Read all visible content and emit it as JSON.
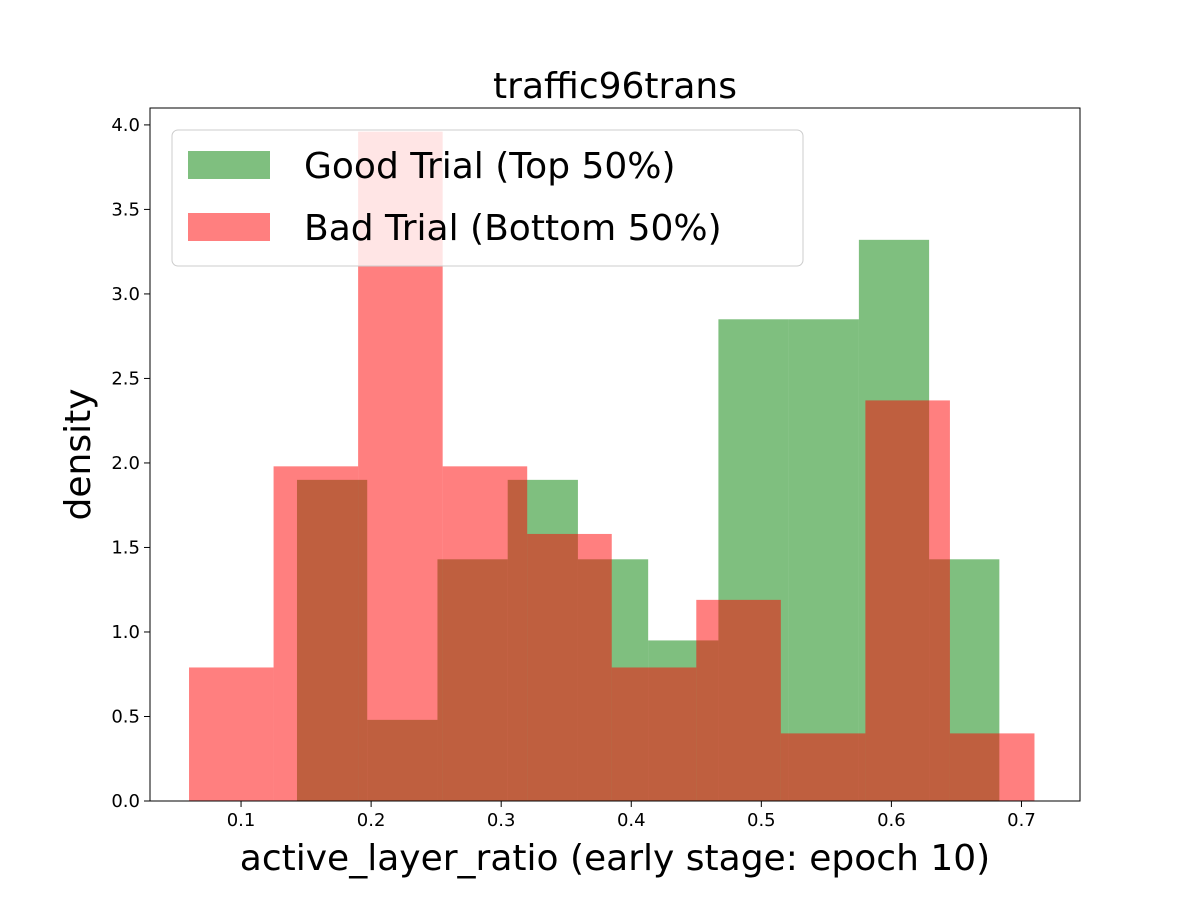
{
  "chart_data": {
    "type": "bar",
    "title": "traffic96trans",
    "xlabel": "active_layer_ratio (early stage: epoch 10)",
    "ylabel": "density",
    "xlim": [
      0.03,
      0.745
    ],
    "ylim": [
      0,
      4.1
    ],
    "xticks": [
      0.1,
      0.2,
      0.3,
      0.4,
      0.5,
      0.6,
      0.7
    ],
    "xtick_labels": [
      "0.1",
      "0.2",
      "0.3",
      "0.4",
      "0.5",
      "0.6",
      "0.7"
    ],
    "yticks": [
      0.0,
      0.5,
      1.0,
      1.5,
      2.0,
      2.5,
      3.0,
      3.5,
      4.0
    ],
    "ytick_labels": [
      "0.0",
      "0.5",
      "1.0",
      "1.5",
      "2.0",
      "2.5",
      "3.0",
      "3.5",
      "4.0"
    ],
    "grid": false,
    "legend_position": "top-left",
    "series": [
      {
        "name": "Good Trial (Top 50%)",
        "color": "#008000",
        "alpha": 0.5,
        "bin_edges": [
          0.143,
          0.197,
          0.251,
          0.305,
          0.359,
          0.413,
          0.467,
          0.521,
          0.575,
          0.629,
          0.683
        ],
        "values": [
          1.9,
          0.48,
          1.43,
          1.9,
          1.43,
          0.95,
          2.85,
          2.85,
          3.32,
          1.43
        ]
      },
      {
        "name": "Bad Trial (Bottom 50%)",
        "color": "#ff0000",
        "alpha": 0.5,
        "bin_edges": [
          0.06,
          0.125,
          0.19,
          0.255,
          0.32,
          0.385,
          0.45,
          0.515,
          0.58,
          0.645,
          0.71
        ],
        "values": [
          0.79,
          1.98,
          3.96,
          1.98,
          1.58,
          0.79,
          1.19,
          0.4,
          2.37,
          0.4
        ]
      }
    ]
  }
}
